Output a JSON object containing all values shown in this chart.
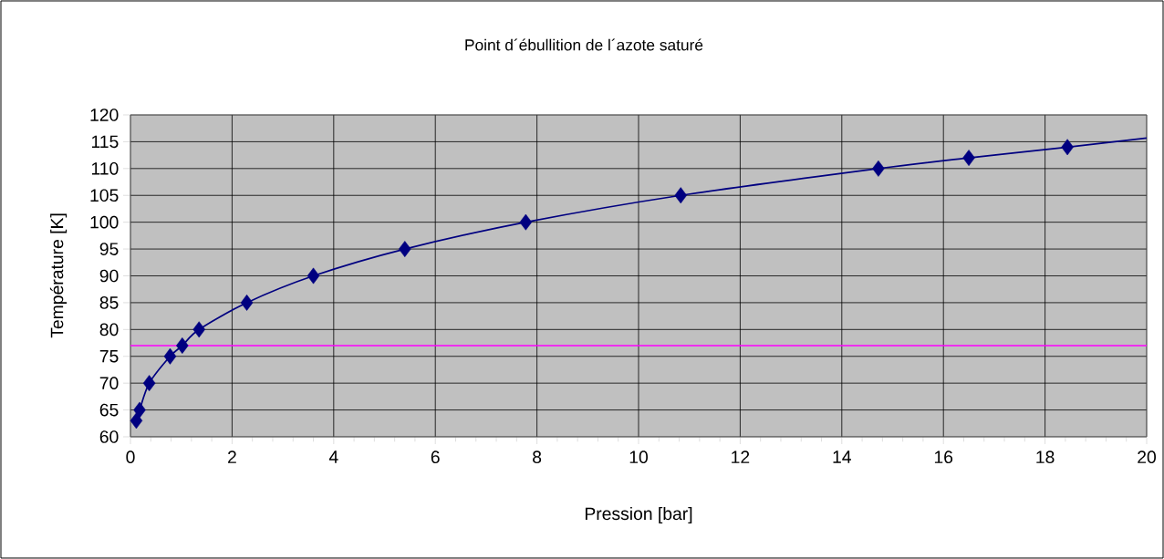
{
  "chart_data": {
    "type": "line",
    "title": "Point d´ébullition de l´azote saturé",
    "xlabel": "Pression [bar]",
    "ylabel": "Température [K]",
    "xlim": [
      0,
      20
    ],
    "xticks": [
      0,
      2,
      4,
      6,
      8,
      10,
      12,
      14,
      16,
      18,
      20
    ],
    "ylim": [
      60,
      120
    ],
    "yticks": [
      60,
      65,
      70,
      75,
      80,
      85,
      90,
      95,
      100,
      105,
      110,
      115,
      120
    ],
    "grid": true,
    "series": [
      {
        "color": "#000080",
        "marker": "none",
        "x": [
          0.115,
          0.18,
          0.37,
          0.78,
          1.02,
          1.35,
          2.29,
          3.6,
          5.4,
          7.78,
          10.83,
          14.72,
          16.5,
          18.44,
          20
        ],
        "values": [
          63,
          65,
          70,
          75,
          77,
          80,
          85,
          90,
          95,
          100,
          105,
          110,
          112,
          114,
          115.7
        ]
      },
      {
        "type": "scatter",
        "color": "#000080",
        "marker": "diamond",
        "x": [
          0.115,
          0.18,
          0.37,
          0.78,
          1.02,
          1.35,
          2.29,
          3.6,
          5.4,
          7.78,
          10.83,
          14.72,
          16.5,
          18.44
        ],
        "values": [
          63,
          65,
          70,
          75,
          77,
          80,
          85,
          90,
          95,
          100,
          105,
          110,
          112,
          114
        ]
      }
    ],
    "ref_lines": [
      {
        "axis": "y",
        "value": 77,
        "color": "#ff00ff"
      }
    ]
  }
}
